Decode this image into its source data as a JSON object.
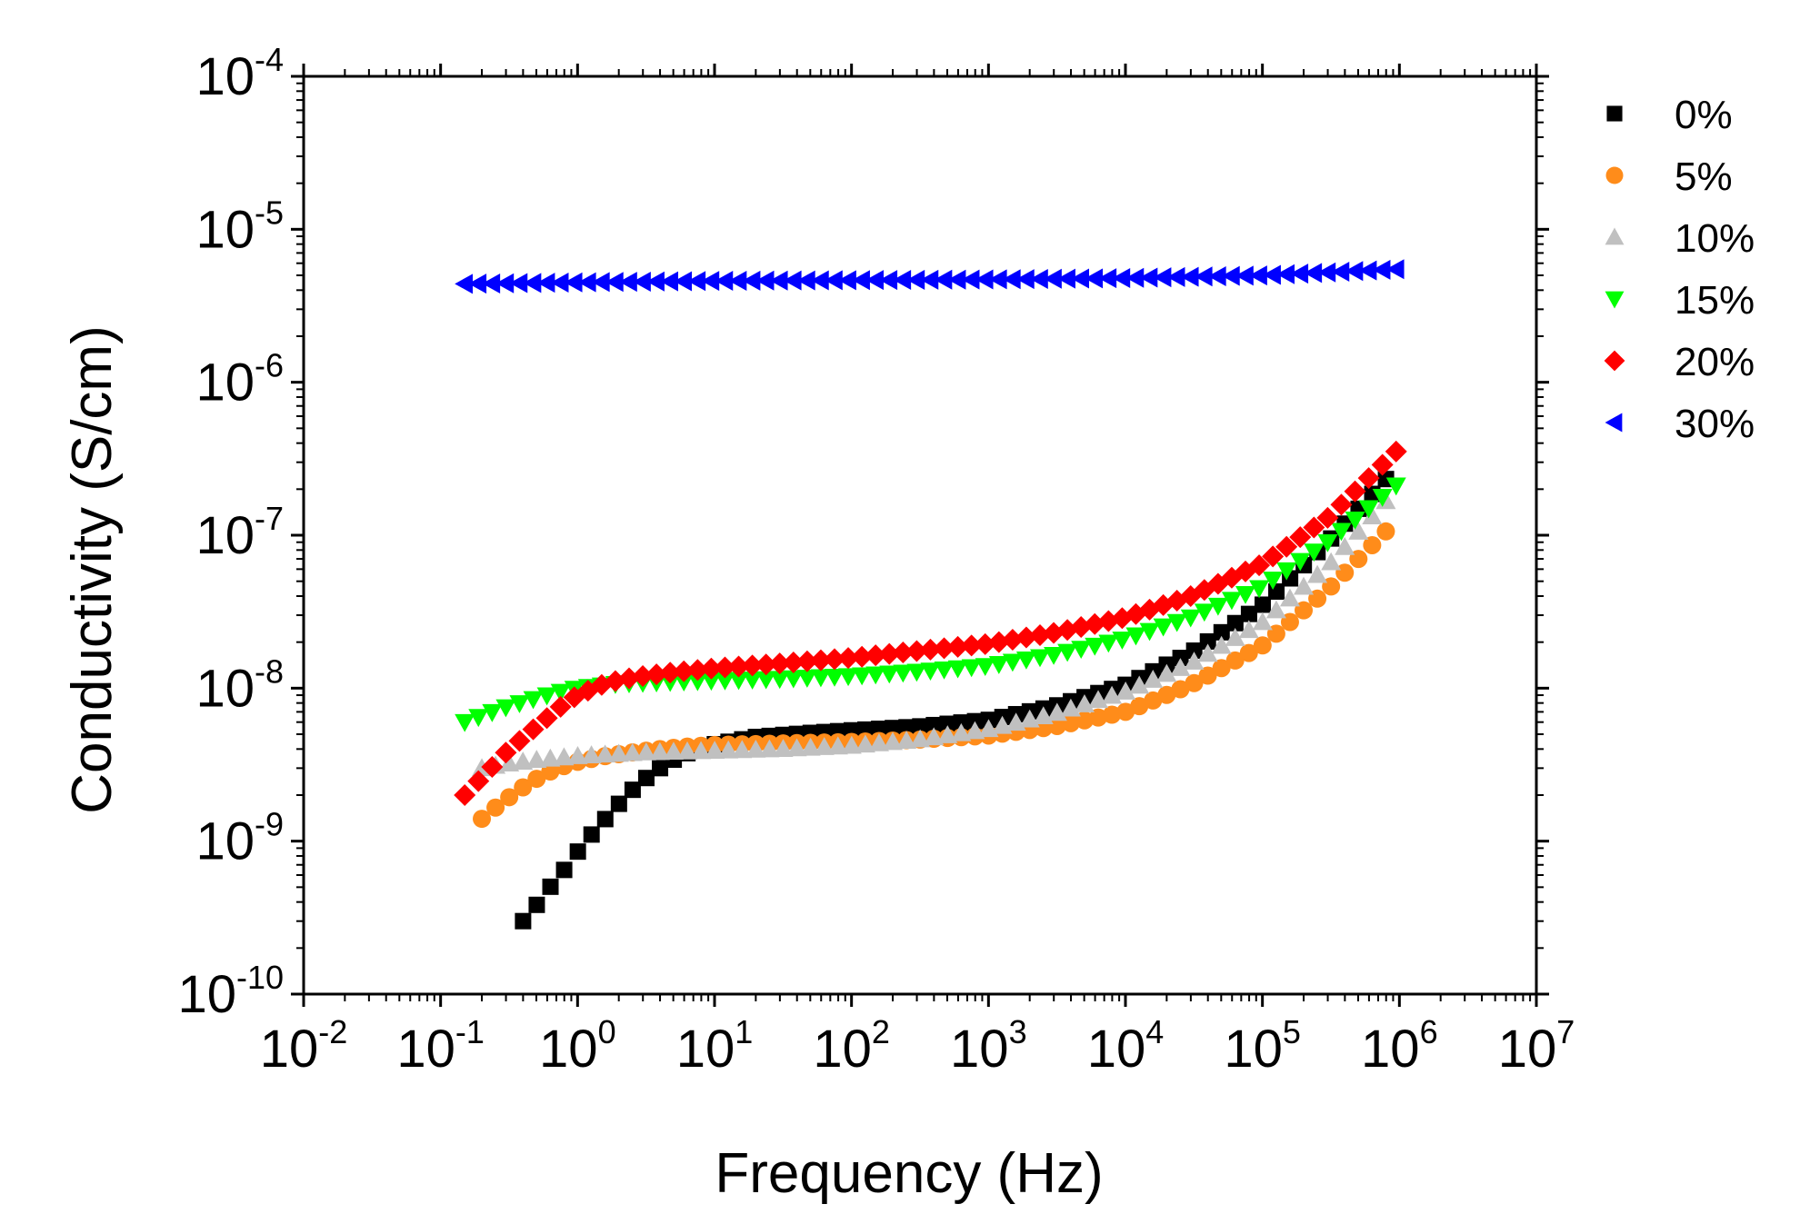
{
  "chart_data": {
    "type": "scatter",
    "title": "",
    "xlabel": "Frequency (Hz)",
    "ylabel": "Conductivity (S/cm)",
    "xscale": "log",
    "yscale": "log",
    "xlim": [
      0.01,
      10000000
    ],
    "ylim": [
      1e-10,
      0.0001
    ],
    "x_ticks": [
      {
        "base": "10",
        "exp": "-2",
        "value": 0.01
      },
      {
        "base": "10",
        "exp": "-1",
        "value": 0.1
      },
      {
        "base": "10",
        "exp": "0",
        "value": 1
      },
      {
        "base": "10",
        "exp": "1",
        "value": 10
      },
      {
        "base": "10",
        "exp": "2",
        "value": 100
      },
      {
        "base": "10",
        "exp": "3",
        "value": 1000
      },
      {
        "base": "10",
        "exp": "4",
        "value": 10000
      },
      {
        "base": "10",
        "exp": "5",
        "value": 100000
      },
      {
        "base": "10",
        "exp": "6",
        "value": 1000000
      },
      {
        "base": "10",
        "exp": "7",
        "value": 10000000
      }
    ],
    "y_ticks": [
      {
        "base": "10",
        "exp": "-10",
        "value": 1e-10
      },
      {
        "base": "10",
        "exp": "-9",
        "value": 1e-09
      },
      {
        "base": "10",
        "exp": "-8",
        "value": 1e-08
      },
      {
        "base": "10",
        "exp": "-7",
        "value": 1e-07
      },
      {
        "base": "10",
        "exp": "-6",
        "value": 1e-06
      },
      {
        "base": "10",
        "exp": "-5",
        "value": 1e-05
      },
      {
        "base": "10",
        "exp": "-4",
        "value": 0.0001
      }
    ],
    "legend_position": "outside-right",
    "series": [
      {
        "name": "0%",
        "marker": "square",
        "color": "#000000",
        "points": [
          [
            0.4,
            3e-10
          ],
          [
            0.5,
            3.8e-10
          ],
          [
            0.63,
            5e-10
          ],
          [
            0.8,
            6.5e-10
          ],
          [
            1.0,
            8.5e-10
          ],
          [
            1.26,
            1.1e-09
          ],
          [
            1.6,
            1.4e-09
          ],
          [
            2.0,
            1.75e-09
          ],
          [
            2.5,
            2.15e-09
          ],
          [
            3.2,
            2.6e-09
          ],
          [
            4.0,
            3e-09
          ],
          [
            5.0,
            3.4e-09
          ],
          [
            6.3,
            3.75e-09
          ],
          [
            8.0,
            4.05e-09
          ],
          [
            10,
            4.3e-09
          ],
          [
            20,
            4.8e-09
          ],
          [
            50,
            5.1e-09
          ],
          [
            100,
            5.3e-09
          ],
          [
            300,
            5.6e-09
          ],
          [
            1000,
            6.2e-09
          ],
          [
            3000,
            7.6e-09
          ],
          [
            10000,
            1.05e-08
          ],
          [
            30000,
            1.7e-08
          ],
          [
            100000,
            3.5e-08
          ],
          [
            300000,
            9e-08
          ],
          [
            1000000,
            2.9e-07
          ]
        ]
      },
      {
        "name": "5%",
        "marker": "circle",
        "color": "#ff8c1a",
        "points": [
          [
            0.2,
            1.4e-09
          ],
          [
            0.25,
            1.65e-09
          ],
          [
            0.32,
            1.95e-09
          ],
          [
            0.4,
            2.25e-09
          ],
          [
            0.5,
            2.55e-09
          ],
          [
            0.63,
            2.85e-09
          ],
          [
            0.8,
            3.1e-09
          ],
          [
            1.0,
            3.3e-09
          ],
          [
            1.6,
            3.6e-09
          ],
          [
            2.5,
            3.8e-09
          ],
          [
            4,
            4e-09
          ],
          [
            6.3,
            4.15e-09
          ],
          [
            10,
            4.25e-09
          ],
          [
            30,
            4.35e-09
          ],
          [
            100,
            4.45e-09
          ],
          [
            300,
            4.6e-09
          ],
          [
            1000,
            4.9e-09
          ],
          [
            3000,
            5.6e-09
          ],
          [
            10000,
            7e-09
          ],
          [
            30000,
            1.05e-08
          ],
          [
            100000,
            1.9e-08
          ],
          [
            300000,
            4.4e-08
          ],
          [
            1000000,
            1.3e-07
          ]
        ]
      },
      {
        "name": "10%",
        "marker": "triangle-up",
        "color": "#c0c0c0",
        "points": [
          [
            0.2,
            3e-09
          ],
          [
            0.3,
            3.2e-09
          ],
          [
            0.5,
            3.4e-09
          ],
          [
            1.0,
            3.6e-09
          ],
          [
            3,
            3.8e-09
          ],
          [
            10,
            3.9e-09
          ],
          [
            30,
            4e-09
          ],
          [
            100,
            4.2e-09
          ],
          [
            300,
            4.6e-09
          ],
          [
            1000,
            5.4e-09
          ],
          [
            3000,
            6.8e-09
          ],
          [
            10000,
            9.5e-09
          ],
          [
            30000,
            1.45e-08
          ],
          [
            100000,
            2.7e-08
          ],
          [
            300000,
            6.3e-08
          ],
          [
            1000000,
            2.1e-07
          ]
        ]
      },
      {
        "name": "15%",
        "marker": "triangle-down",
        "color": "#00ff00",
        "points": [
          [
            0.15,
            6e-09
          ],
          [
            0.2,
            6.6e-09
          ],
          [
            0.3,
            7.5e-09
          ],
          [
            0.5,
            8.6e-09
          ],
          [
            0.8,
            9.6e-09
          ],
          [
            1.0,
            1e-08
          ],
          [
            2,
            1.07e-08
          ],
          [
            5,
            1.1e-08
          ],
          [
            10,
            1.12e-08
          ],
          [
            30,
            1.15e-08
          ],
          [
            100,
            1.2e-08
          ],
          [
            300,
            1.28e-08
          ],
          [
            1000,
            1.4e-08
          ],
          [
            3000,
            1.65e-08
          ],
          [
            10000,
            2.1e-08
          ],
          [
            30000,
            2.9e-08
          ],
          [
            100000,
            4.6e-08
          ],
          [
            300000,
            9e-08
          ],
          [
            1000000,
            2.2e-07
          ]
        ]
      },
      {
        "name": "20%",
        "marker": "diamond",
        "color": "#ff0000",
        "points": [
          [
            0.15,
            2e-09
          ],
          [
            0.2,
            2.6e-09
          ],
          [
            0.3,
            3.8e-09
          ],
          [
            0.5,
            5.6e-09
          ],
          [
            0.8,
            7.9e-09
          ],
          [
            1.0,
            9e-09
          ],
          [
            1.5,
            1.05e-08
          ],
          [
            2,
            1.13e-08
          ],
          [
            3,
            1.2e-08
          ],
          [
            5,
            1.27e-08
          ],
          [
            10,
            1.35e-08
          ],
          [
            30,
            1.45e-08
          ],
          [
            100,
            1.58e-08
          ],
          [
            300,
            1.75e-08
          ],
          [
            1000,
            1.95e-08
          ],
          [
            3000,
            2.3e-08
          ],
          [
            10000,
            2.9e-08
          ],
          [
            30000,
            4e-08
          ],
          [
            100000,
            6.5e-08
          ],
          [
            300000,
            1.3e-07
          ],
          [
            1000000,
            3.7e-07
          ]
        ]
      },
      {
        "name": "30%",
        "marker": "triangle-left",
        "color": "#0000ff",
        "points": [
          [
            0.15,
            4.4e-06
          ],
          [
            1,
            4.5e-06
          ],
          [
            10,
            4.6e-06
          ],
          [
            100,
            4.65e-06
          ],
          [
            1000,
            4.7e-06
          ],
          [
            10000,
            4.8e-06
          ],
          [
            100000,
            5e-06
          ],
          [
            1000000,
            5.5e-06
          ]
        ]
      }
    ]
  }
}
